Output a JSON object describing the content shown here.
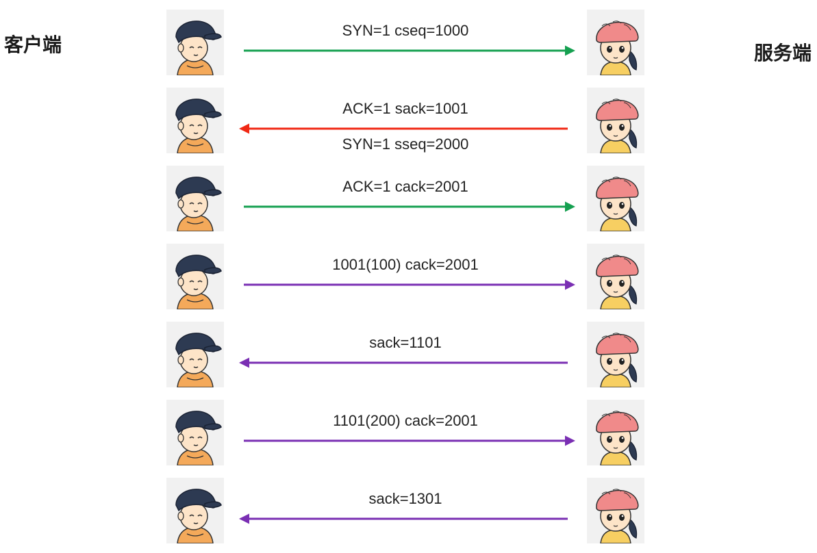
{
  "client_label": "客户端",
  "server_label": "服务端",
  "colors": {
    "green": "#15a050",
    "red": "#f02814",
    "purple": "#7a2fb3"
  },
  "messages": [
    {
      "direction": "to_server",
      "color": "green",
      "labels": [
        "SYN=1 cseq=1000"
      ]
    },
    {
      "direction": "to_client",
      "color": "red",
      "labels": [
        "ACK=1 sack=1001",
        "SYN=1 sseq=2000"
      ]
    },
    {
      "direction": "to_server",
      "color": "green",
      "labels": [
        "ACK=1 cack=2001"
      ]
    },
    {
      "direction": "to_server",
      "color": "purple",
      "labels": [
        "1001(100) cack=2001"
      ]
    },
    {
      "direction": "to_client",
      "color": "purple",
      "labels": [
        "sack=1101"
      ]
    },
    {
      "direction": "to_server",
      "color": "purple",
      "labels": [
        "1101(200) cack=2001"
      ]
    },
    {
      "direction": "to_client",
      "color": "purple",
      "labels": [
        "sack=1301"
      ]
    }
  ]
}
